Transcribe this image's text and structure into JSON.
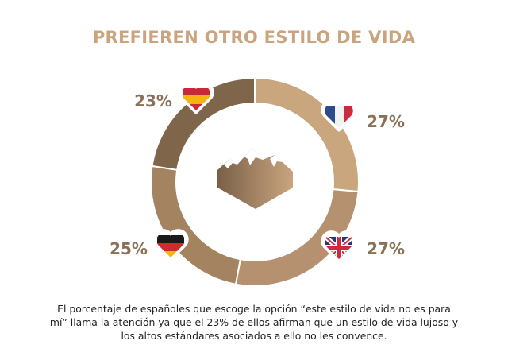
{
  "colors": {
    "title": "#c9a47e",
    "label": "#8a7156"
  },
  "chart_data": {
    "type": "pie",
    "title": "PREFIEREN OTRO ESTILO DE VIDA",
    "variant": "donut",
    "slices": [
      {
        "label": "Francia",
        "flag": "france-flag",
        "value": 27,
        "display": "27%",
        "color": "#caa67e"
      },
      {
        "label": "Reino Unido",
        "flag": "uk-flag",
        "value": 27,
        "display": "27%",
        "color": "#b59170"
      },
      {
        "label": "Alemania",
        "flag": "germany-flag",
        "value": 25,
        "display": "25%",
        "color": "#a48361"
      },
      {
        "label": "España",
        "flag": "spain-flag",
        "value": 23,
        "display": "23%",
        "color": "#7f654a"
      }
    ]
  },
  "center_icon": "mountain-icon",
  "caption": "El porcentaje de españoles que escoge la opción “este estilo de vida no es para mí” llama la atención ya que el 23% de ellos afirman que un estilo de vida lujoso y los altos estándares asociados a ello no les convence."
}
